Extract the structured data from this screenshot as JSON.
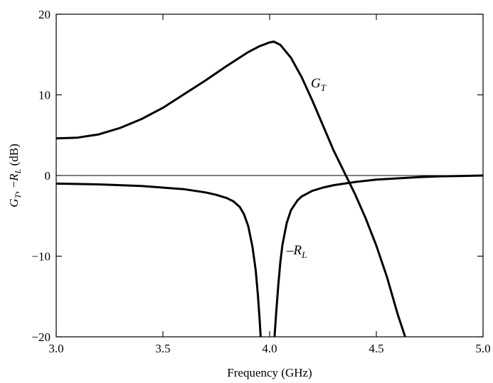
{
  "chart_data": {
    "type": "line",
    "xlabel": "Frequency (GHz)",
    "ylabel": {
      "g": "G",
      "g_sub": "T",
      "sep": ", −",
      "r": "R",
      "r_sub": "L",
      "unit": " (dB)"
    },
    "xlim": [
      3.0,
      5.0
    ],
    "ylim": [
      -20,
      20
    ],
    "x_ticks": [
      3.0,
      3.5,
      4.0,
      4.5,
      5.0
    ],
    "x_tick_labels": [
      "3.0",
      "3.5",
      "4.0",
      "4.5",
      "5.0"
    ],
    "y_ticks": [
      -20,
      -10,
      0,
      10,
      20
    ],
    "y_tick_labels": [
      "−20",
      "−10",
      "0",
      "10",
      "20"
    ],
    "grid": false,
    "legend": "none",
    "annotations": {
      "gt": {
        "main": "G",
        "sub": "T"
      },
      "rl": {
        "main": "–R",
        "sub": "L"
      }
    },
    "series": [
      {
        "name": "G_T",
        "x": [
          3.0,
          3.1,
          3.2,
          3.3,
          3.4,
          3.5,
          3.6,
          3.7,
          3.8,
          3.9,
          3.95,
          4.0,
          4.02,
          4.05,
          4.1,
          4.15,
          4.2,
          4.25,
          4.3,
          4.35,
          4.4,
          4.45,
          4.5,
          4.55,
          4.6,
          4.635
        ],
        "y": [
          4.6,
          4.7,
          5.1,
          5.9,
          7.0,
          8.4,
          10.1,
          11.8,
          13.6,
          15.3,
          16.0,
          16.5,
          16.6,
          16.2,
          14.6,
          12.2,
          9.3,
          6.2,
          3.1,
          0.4,
          -2.3,
          -5.3,
          -8.7,
          -12.6,
          -17.2,
          -20.0
        ]
      },
      {
        "name": "-R_L (left branch)",
        "x": [
          3.0,
          3.2,
          3.4,
          3.6,
          3.7,
          3.75,
          3.8,
          3.83,
          3.86,
          3.88,
          3.9,
          3.92,
          3.935,
          3.945,
          3.953,
          3.958
        ],
        "y": [
          -1.0,
          -1.1,
          -1.3,
          -1.7,
          -2.1,
          -2.4,
          -2.8,
          -3.2,
          -3.9,
          -4.8,
          -6.3,
          -8.9,
          -11.8,
          -14.8,
          -17.8,
          -20.0
        ]
      },
      {
        "name": "-R_L (right branch)",
        "x": [
          4.023,
          4.03,
          4.04,
          4.05,
          4.06,
          4.08,
          4.1,
          4.13,
          4.15,
          4.2,
          4.25,
          4.3,
          4.4,
          4.5,
          4.6,
          4.7,
          4.8,
          4.9,
          5.0
        ],
        "y": [
          -20.0,
          -17.3,
          -13.8,
          -10.8,
          -8.6,
          -5.9,
          -4.3,
          -3.1,
          -2.6,
          -1.9,
          -1.5,
          -1.2,
          -0.8,
          -0.5,
          -0.35,
          -0.2,
          -0.1,
          -0.05,
          0.0
        ]
      }
    ]
  }
}
